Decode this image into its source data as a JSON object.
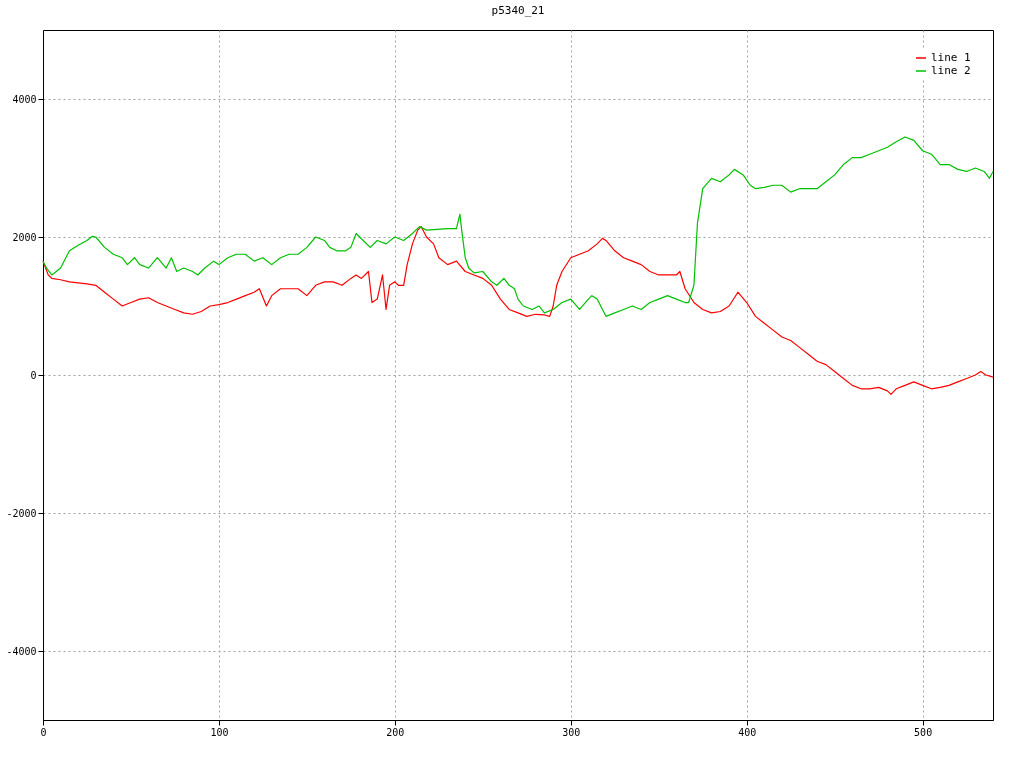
{
  "chart_data": {
    "type": "line",
    "title": "p5340_21",
    "xlim": [
      0,
      540
    ],
    "ylim": [
      -5000,
      5000
    ],
    "xticks": [
      0,
      100,
      200,
      300,
      400,
      500
    ],
    "yticks": [
      -4000,
      -2000,
      0,
      2000,
      4000
    ],
    "grid": true,
    "legend": "top right",
    "marker": "none",
    "line_style": "solid",
    "series": [
      {
        "name": "line 1",
        "color": "#ff0000",
        "x": [
          0,
          3,
          5,
          10,
          15,
          25,
          30,
          35,
          40,
          45,
          50,
          55,
          60,
          65,
          70,
          75,
          80,
          85,
          90,
          95,
          100,
          105,
          110,
          115,
          120,
          123,
          127,
          130,
          135,
          145,
          150,
          155,
          160,
          165,
          170,
          175,
          178,
          181,
          185,
          187,
          190,
          193,
          195,
          197,
          200,
          202,
          205,
          207,
          210,
          213,
          215,
          218,
          222,
          225,
          230,
          235,
          240,
          245,
          250,
          255,
          260,
          265,
          270,
          275,
          280,
          285,
          288,
          290,
          292,
          295,
          300,
          305,
          310,
          315,
          318,
          320,
          325,
          330,
          335,
          340,
          345,
          350,
          355,
          360,
          362,
          365,
          370,
          375,
          380,
          385,
          390,
          395,
          400,
          405,
          410,
          415,
          420,
          425,
          430,
          435,
          440,
          445,
          450,
          455,
          460,
          465,
          470,
          475,
          480,
          482,
          485,
          490,
          495,
          500,
          505,
          510,
          515,
          520,
          525,
          530,
          533,
          536,
          540
        ],
        "values": [
          1650,
          1450,
          1400,
          1380,
          1350,
          1320,
          1300,
          1200,
          1100,
          1000,
          1050,
          1100,
          1120,
          1050,
          1000,
          950,
          900,
          880,
          920,
          1000,
          1020,
          1050,
          1100,
          1150,
          1200,
          1250,
          1000,
          1150,
          1250,
          1250,
          1150,
          1300,
          1350,
          1350,
          1300,
          1400,
          1450,
          1400,
          1500,
          1050,
          1100,
          1450,
          950,
          1300,
          1350,
          1300,
          1300,
          1600,
          1900,
          2100,
          2150,
          2000,
          1900,
          1700,
          1600,
          1650,
          1500,
          1450,
          1400,
          1300,
          1100,
          950,
          900,
          850,
          880,
          870,
          850,
          1000,
          1300,
          1500,
          1700,
          1750,
          1800,
          1900,
          1980,
          1950,
          1800,
          1700,
          1650,
          1600,
          1500,
          1450,
          1450,
          1450,
          1500,
          1250,
          1050,
          950,
          900,
          920,
          1000,
          1200,
          1050,
          850,
          750,
          650,
          550,
          500,
          400,
          300,
          200,
          150,
          50,
          -50,
          -150,
          -200,
          -200,
          -180,
          -230,
          -280,
          -200,
          -150,
          -100,
          -150,
          -200,
          -180,
          -150,
          -100,
          -50,
          0,
          50,
          0,
          -30
        ]
      },
      {
        "name": "line 2",
        "color": "#00c000",
        "x": [
          0,
          2,
          5,
          10,
          15,
          20,
          25,
          28,
          30,
          35,
          40,
          45,
          48,
          52,
          55,
          60,
          65,
          70,
          73,
          76,
          80,
          85,
          88,
          92,
          97,
          100,
          105,
          110,
          115,
          120,
          125,
          130,
          135,
          140,
          145,
          150,
          155,
          160,
          163,
          167,
          172,
          175,
          178,
          182,
          186,
          190,
          195,
          200,
          205,
          210,
          214,
          218,
          230,
          235,
          237,
          238,
          240,
          242,
          245,
          250,
          255,
          258,
          262,
          265,
          268,
          270,
          273,
          278,
          282,
          285,
          290,
          295,
          300,
          305,
          310,
          312,
          315,
          320,
          325,
          330,
          335,
          340,
          345,
          350,
          355,
          360,
          365,
          367,
          370,
          372,
          375,
          380,
          385,
          390,
          393,
          398,
          402,
          405,
          410,
          415,
          420,
          425,
          430,
          440,
          445,
          450,
          455,
          460,
          465,
          470,
          475,
          480,
          485,
          490,
          495,
          500,
          505,
          510,
          515,
          520,
          525,
          530,
          535,
          538,
          540
        ],
        "values": [
          1650,
          1550,
          1450,
          1550,
          1800,
          1880,
          1950,
          2010,
          2000,
          1850,
          1750,
          1700,
          1600,
          1700,
          1600,
          1550,
          1700,
          1550,
          1700,
          1500,
          1550,
          1500,
          1450,
          1550,
          1650,
          1600,
          1700,
          1750,
          1750,
          1650,
          1700,
          1600,
          1700,
          1750,
          1750,
          1850,
          2000,
          1950,
          1850,
          1800,
          1800,
          1850,
          2050,
          1950,
          1850,
          1950,
          1900,
          2000,
          1950,
          2050,
          2150,
          2100,
          2120,
          2120,
          2330,
          2100,
          1700,
          1550,
          1480,
          1500,
          1350,
          1300,
          1400,
          1300,
          1250,
          1100,
          1000,
          950,
          1000,
          900,
          950,
          1050,
          1100,
          950,
          1100,
          1150,
          1100,
          850,
          900,
          950,
          1000,
          950,
          1050,
          1100,
          1150,
          1100,
          1050,
          1050,
          1300,
          2200,
          2700,
          2850,
          2800,
          2900,
          2980,
          2900,
          2750,
          2700,
          2720,
          2750,
          2750,
          2650,
          2700,
          2700,
          2800,
          2900,
          3050,
          3150,
          3150,
          3200,
          3250,
          3300,
          3380,
          3450,
          3400,
          3250,
          3200,
          3050,
          3050,
          2980,
          2950,
          3000,
          2950,
          2850,
          2950
        ]
      }
    ]
  }
}
